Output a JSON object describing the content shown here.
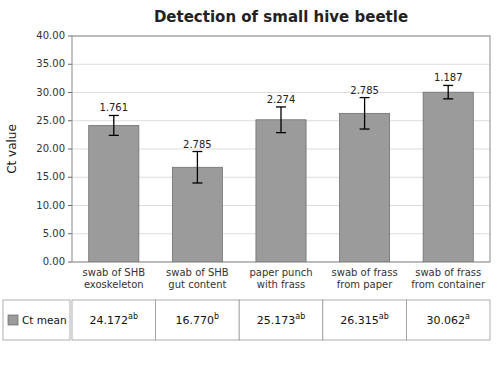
{
  "chart_data": {
    "type": "bar",
    "title": "Detection of small hive beetle",
    "ylabel": "Ct value",
    "categories": [
      "swab of SHB\nexoskeleton",
      "swab of SHB\ngut content",
      "paper punch\nwith frass",
      "swab of frass\nfrom paper",
      "swab of frass\nfrom container"
    ],
    "series": [
      {
        "name": "Ct mean",
        "color": "#9b9b9b",
        "values": [
          24.172,
          16.77,
          25.173,
          26.315,
          30.062
        ],
        "errors": [
          1.761,
          2.785,
          2.274,
          2.785,
          1.187
        ],
        "value_labels": [
          "24.172",
          "16.770",
          "25.173",
          "26.315",
          "30.062"
        ],
        "superscripts": [
          "ab",
          "b",
          "ab",
          "ab",
          "a"
        ]
      }
    ],
    "ylim": [
      0,
      40
    ],
    "yticks": [
      {
        "value": 0,
        "label": "0.00"
      },
      {
        "value": 5,
        "label": "5.00"
      },
      {
        "value": 10,
        "label": "10.00"
      },
      {
        "value": 15,
        "label": "15.00"
      },
      {
        "value": 20,
        "label": "20.00"
      },
      {
        "value": 25,
        "label": "25.00"
      },
      {
        "value": 30,
        "label": "30.00"
      },
      {
        "value": 35,
        "label": "35.00"
      },
      {
        "value": 40,
        "label": "40.00"
      }
    ],
    "grid": true,
    "legend": "bottom"
  }
}
